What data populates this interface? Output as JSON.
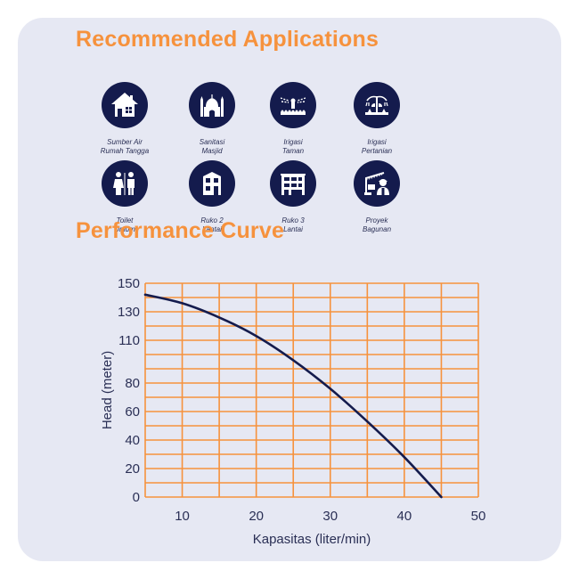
{
  "headings": {
    "applications": "Recommended Applications",
    "performance": "Performance Curve"
  },
  "applications": [
    {
      "icon": "house-icon",
      "line1": "Sumber Air",
      "line2": "Rumah Tangga"
    },
    {
      "icon": "mosque-icon",
      "line1": "Sanitasi",
      "line2": "Masjid"
    },
    {
      "icon": "garden-sprinkler-icon",
      "line1": "Irigasi",
      "line2": "Taman"
    },
    {
      "icon": "farm-irrigation-icon",
      "line1": "Irigasi",
      "line2": "Pertanian"
    },
    {
      "icon": "restroom-icon",
      "line1": "Toilet",
      "line2": "Umum"
    },
    {
      "icon": "two-story-building-icon",
      "line1": "Ruko 2",
      "line2": "Lantai"
    },
    {
      "icon": "three-story-building-icon",
      "line1": "Ruko 3",
      "line2": "Lantai"
    },
    {
      "icon": "construction-project-icon",
      "line1": "Proyek",
      "line2": "Bagunan"
    }
  ],
  "colors": {
    "accent": "#f6923d",
    "icon_bg": "#141b4d",
    "curve": "#141b4d",
    "grid": "#f6923d",
    "card": "#e6e8f3"
  },
  "chart_data": {
    "type": "line",
    "title": "Performance Curve",
    "xlabel": "Kapasitas (liter/min)",
    "ylabel": "Head (meter)",
    "xlim": [
      5,
      50
    ],
    "ylim": [
      0,
      150
    ],
    "x_ticks": [
      10,
      20,
      30,
      40,
      50
    ],
    "y_ticks": [
      0,
      20,
      40,
      60,
      80,
      110,
      130,
      150
    ],
    "grid": true,
    "grid_x": [
      5,
      10,
      15,
      20,
      25,
      30,
      35,
      40,
      45,
      50
    ],
    "grid_y": [
      0,
      10,
      20,
      30,
      40,
      50,
      60,
      70,
      80,
      90,
      100,
      110,
      120,
      130,
      140,
      150
    ],
    "series": [
      {
        "x": [
          5,
          10,
          15,
          20,
          25,
          30,
          35,
          40,
          45
        ],
        "y": [
          142,
          136,
          126,
          113,
          96,
          76,
          53,
          28,
          0
        ]
      }
    ]
  }
}
